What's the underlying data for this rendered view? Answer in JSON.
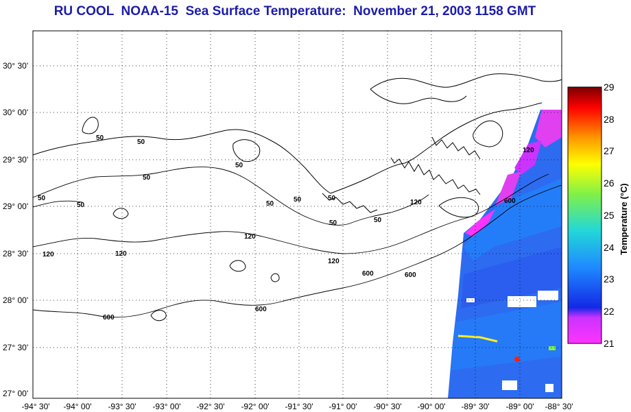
{
  "title": "RU COOL  NOAA-15  Sea Surface Temperature:  November 21, 2003 1158 GMT",
  "map": {
    "lat_labels": [
      "30° 30'",
      "30° 00'",
      "29° 30'",
      "29° 00'",
      "28° 30'",
      "28° 00'",
      "27° 30'",
      "27° 00'"
    ],
    "lon_labels": [
      "-94° 30'",
      "-94° 00'",
      "-93° 30'",
      "-93° 00'",
      "-92° 30'",
      "-92° 00'",
      "-91° 30'",
      "-91° 00'",
      "-90° 30'",
      "-90° 00'",
      "-89° 30'",
      "-89° 00'",
      "-88° 30'"
    ],
    "contour_labels": [
      "50",
      "50",
      "50",
      "50",
      "50",
      "50",
      "50",
      "50",
      "50",
      "50",
      "50",
      "120",
      "120",
      "120",
      "120",
      "120",
      "120",
      "600",
      "600",
      "600",
      "600",
      "600"
    ],
    "grid": "dotted",
    "colors": {
      "coast": "#000000",
      "grid": "#000000",
      "title": "#1c1ca8"
    }
  },
  "colorbar": {
    "label": "Temperature (°C)",
    "ticks": [
      "29",
      "28",
      "27",
      "26",
      "25",
      "24",
      "23",
      "22",
      "21"
    ],
    "range": [
      21,
      29
    ],
    "colors": [
      "#ff33ff",
      "#1428e6",
      "#1e8cff",
      "#22d8d8",
      "#7ff04a",
      "#ffff00",
      "#ff9900",
      "#ff0000",
      "#7a0000"
    ]
  }
}
